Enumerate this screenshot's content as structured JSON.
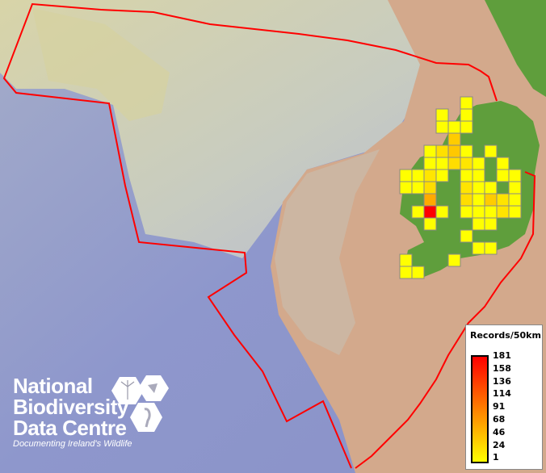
{
  "legend": {
    "title": "Records/50km",
    "ticks": [
      "181",
      "158",
      "136",
      "114",
      "91",
      "68",
      "46",
      "24",
      "1"
    ],
    "colors": {
      "high": "#ff0000",
      "mid": "#ff8000",
      "low": "#ffff00"
    }
  },
  "logo": {
    "line1": "National",
    "line2": "Biodiversity",
    "line3": "Data Centre",
    "tagline": "Documenting Ireland's Wildlife"
  },
  "colors": {
    "boundary": "#ff0000",
    "land": "#5f9e3c",
    "shelf": "#d3a98c",
    "deep_sea": "#8f99cc",
    "cell_border": "#888888"
  },
  "grid_cells": [
    {
      "col": 5,
      "row": 0,
      "color": "#ffff00"
    },
    {
      "col": 3,
      "row": 1,
      "color": "#ffff00"
    },
    {
      "col": 5,
      "row": 1,
      "color": "#ffff00"
    },
    {
      "col": 3,
      "row": 2,
      "color": "#ffff00"
    },
    {
      "col": 4,
      "row": 2,
      "color": "#ffff00"
    },
    {
      "col": 5,
      "row": 2,
      "color": "#ffff00"
    },
    {
      "col": 4,
      "row": 3,
      "color": "#ffcc00"
    },
    {
      "col": 2,
      "row": 4,
      "color": "#ffff00"
    },
    {
      "col": 3,
      "row": 4,
      "color": "#ffe000"
    },
    {
      "col": 4,
      "row": 4,
      "color": "#ffc800"
    },
    {
      "col": 5,
      "row": 4,
      "color": "#ffff00"
    },
    {
      "col": 7,
      "row": 4,
      "color": "#ffff00"
    },
    {
      "col": 2,
      "row": 5,
      "color": "#ffff00"
    },
    {
      "col": 3,
      "row": 5,
      "color": "#ffff00"
    },
    {
      "col": 4,
      "row": 5,
      "color": "#ffdd00"
    },
    {
      "col": 5,
      "row": 5,
      "color": "#ffe600"
    },
    {
      "col": 6,
      "row": 5,
      "color": "#ffff00"
    },
    {
      "col": 8,
      "row": 5,
      "color": "#ffff00"
    },
    {
      "col": 0,
      "row": 6,
      "color": "#ffff00"
    },
    {
      "col": 1,
      "row": 6,
      "color": "#ffff00"
    },
    {
      "col": 2,
      "row": 6,
      "color": "#ffe600"
    },
    {
      "col": 3,
      "row": 6,
      "color": "#ffff00"
    },
    {
      "col": 5,
      "row": 6,
      "color": "#ffff00"
    },
    {
      "col": 6,
      "row": 6,
      "color": "#ffff00"
    },
    {
      "col": 8,
      "row": 6,
      "color": "#ffff00"
    },
    {
      "col": 9,
      "row": 6,
      "color": "#ffff00"
    },
    {
      "col": 0,
      "row": 7,
      "color": "#ffff00"
    },
    {
      "col": 1,
      "row": 7,
      "color": "#ffff00"
    },
    {
      "col": 2,
      "row": 7,
      "color": "#ffdd00"
    },
    {
      "col": 5,
      "row": 7,
      "color": "#ffe400"
    },
    {
      "col": 6,
      "row": 7,
      "color": "#ffff00"
    },
    {
      "col": 7,
      "row": 7,
      "color": "#ffff00"
    },
    {
      "col": 9,
      "row": 7,
      "color": "#ffff00"
    },
    {
      "col": 2,
      "row": 8,
      "color": "#ffaa00"
    },
    {
      "col": 5,
      "row": 8,
      "color": "#ffdd00"
    },
    {
      "col": 6,
      "row": 8,
      "color": "#ffff00"
    },
    {
      "col": 7,
      "row": 8,
      "color": "#ffcc00"
    },
    {
      "col": 8,
      "row": 8,
      "color": "#ffe400"
    },
    {
      "col": 9,
      "row": 8,
      "color": "#ffff00"
    },
    {
      "col": 1,
      "row": 9,
      "color": "#ffff00"
    },
    {
      "col": 2,
      "row": 9,
      "color": "#ff0000"
    },
    {
      "col": 3,
      "row": 9,
      "color": "#ffff00"
    },
    {
      "col": 5,
      "row": 9,
      "color": "#ffff00"
    },
    {
      "col": 6,
      "row": 9,
      "color": "#ffff00"
    },
    {
      "col": 7,
      "row": 9,
      "color": "#ffff00"
    },
    {
      "col": 8,
      "row": 9,
      "color": "#ffe400"
    },
    {
      "col": 9,
      "row": 9,
      "color": "#ffff00"
    },
    {
      "col": 2,
      "row": 10,
      "color": "#ffff00"
    },
    {
      "col": 6,
      "row": 10,
      "color": "#ffff00"
    },
    {
      "col": 7,
      "row": 10,
      "color": "#ffff00"
    },
    {
      "col": 5,
      "row": 11,
      "color": "#ffff00"
    },
    {
      "col": 6,
      "row": 12,
      "color": "#ffff00"
    },
    {
      "col": 7,
      "row": 12,
      "color": "#ffff00"
    },
    {
      "col": 0,
      "row": 13,
      "color": "#ffff00"
    },
    {
      "col": 4,
      "row": 13,
      "color": "#ffff00"
    },
    {
      "col": 0,
      "row": 14,
      "color": "#ffff00"
    },
    {
      "col": 1,
      "row": 14,
      "color": "#ffff00"
    }
  ]
}
